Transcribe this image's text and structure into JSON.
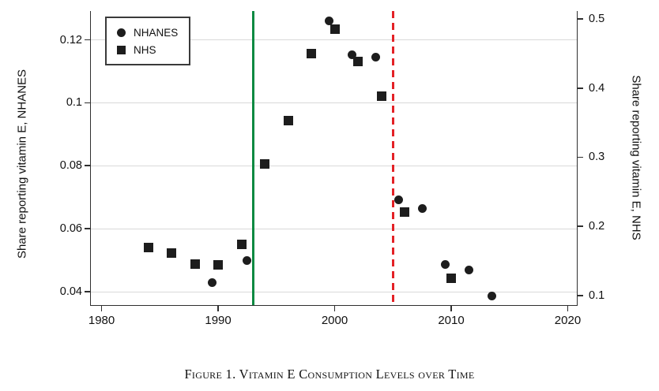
{
  "caption": "Figure 1. Vitamin E Consumption Levels over Time",
  "colors": {
    "marker": "#1d1d1d",
    "gridline": "#d9d9d9",
    "axis": "#2f2f2f",
    "text": "#111111",
    "green_line": "#0c8a42",
    "red_line": "#e32126",
    "background": "#ffffff"
  },
  "chart_data": {
    "type": "scatter",
    "title": "Figure 1. Vitamin E Consumption Levels over Time",
    "grid": "horizontal",
    "legend_position": "top-left",
    "x_axis": {
      "label": "",
      "tick_labels": [
        "1980",
        "1990",
        "2000",
        "2010",
        "2020"
      ],
      "tick_values": [
        1980,
        1990,
        2000,
        2010,
        2020
      ],
      "range": [
        1979.08,
        2020.78
      ]
    },
    "left_axis": {
      "label": "Share reporting vitamin E, NHANES",
      "tick_labels": [
        "0.04",
        "0.06",
        "0.08",
        "0.1",
        "0.12"
      ],
      "tick_values": [
        0.04,
        0.06,
        0.08,
        0.1,
        0.12
      ],
      "range": [
        0.03587,
        0.12914
      ]
    },
    "right_axis": {
      "label": "Share reporting vitamin E, NHS",
      "tick_labels": [
        "0.1",
        "0.2",
        "0.3",
        "0.4",
        "0.5"
      ],
      "tick_values": [
        0.1,
        0.2,
        0.3,
        0.4,
        0.5
      ],
      "range": [
        0.0869,
        0.51139
      ]
    },
    "series": [
      {
        "name": "NHANES",
        "marker": "circle",
        "axis": "left",
        "points": [
          [
            1989.5,
            0.043
          ],
          [
            1992.5,
            0.05
          ],
          [
            1999.5,
            0.126
          ],
          [
            2001.5,
            0.1152
          ],
          [
            2003.5,
            0.1145
          ],
          [
            2005.5,
            0.0692
          ],
          [
            2007.5,
            0.0663
          ],
          [
            2009.5,
            0.0487
          ],
          [
            2011.5,
            0.047
          ],
          [
            2013.5,
            0.0386
          ]
        ]
      },
      {
        "name": "NHS",
        "marker": "square",
        "axis": "right",
        "points": [
          [
            1984,
            0.17
          ],
          [
            1986,
            0.161
          ],
          [
            1988,
            0.146
          ],
          [
            1990,
            0.145
          ],
          [
            1992,
            0.174
          ],
          [
            1994,
            0.29
          ],
          [
            1996,
            0.353
          ],
          [
            1998,
            0.4495
          ],
          [
            2000,
            0.4855
          ],
          [
            2002,
            0.4385
          ],
          [
            2004,
            0.388
          ],
          [
            2006,
            0.221
          ],
          [
            2010,
            0.1247
          ]
        ]
      }
    ],
    "reference_lines": [
      {
        "x": 1993,
        "style": "solid",
        "color_key": "green_line"
      },
      {
        "x": 2005,
        "style": "dashed",
        "color_key": "red_line"
      }
    ]
  }
}
